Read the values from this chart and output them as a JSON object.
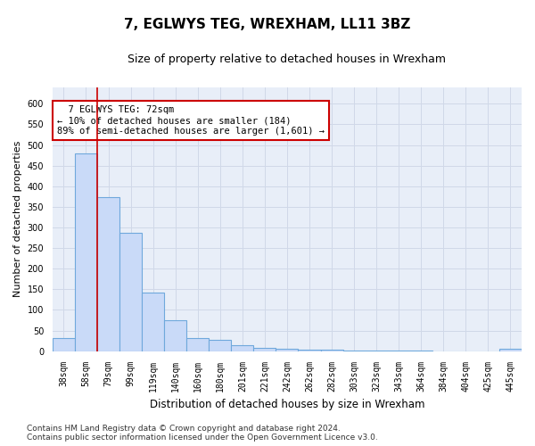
{
  "title": "7, EGLWYS TEG, WREXHAM, LL11 3BZ",
  "subtitle": "Size of property relative to detached houses in Wrexham",
  "xlabel": "Distribution of detached houses by size in Wrexham",
  "ylabel": "Number of detached properties",
  "categories": [
    "38sqm",
    "58sqm",
    "79sqm",
    "99sqm",
    "119sqm",
    "140sqm",
    "160sqm",
    "180sqm",
    "201sqm",
    "221sqm",
    "242sqm",
    "262sqm",
    "282sqm",
    "303sqm",
    "323sqm",
    "343sqm",
    "364sqm",
    "384sqm",
    "404sqm",
    "425sqm",
    "445sqm"
  ],
  "values": [
    32,
    480,
    373,
    288,
    143,
    75,
    31,
    28,
    15,
    8,
    5,
    3,
    3,
    1,
    1,
    1,
    1,
    0,
    0,
    0,
    5
  ],
  "bar_color": "#c9daf8",
  "bar_edge_color": "#6fa8dc",
  "grid_color": "#d0d8e8",
  "background_color": "#e8eef8",
  "annotation_text": "  7 EGLWYS TEG: 72sqm\n← 10% of detached houses are smaller (184)\n89% of semi-detached houses are larger (1,601) →",
  "annotation_box_color": "#ffffff",
  "annotation_box_edge_color": "#cc0000",
  "red_line_x": 1.5,
  "ylim": [
    0,
    640
  ],
  "yticks": [
    0,
    50,
    100,
    150,
    200,
    250,
    300,
    350,
    400,
    450,
    500,
    550,
    600
  ],
  "footer_text": "Contains HM Land Registry data © Crown copyright and database right 2024.\nContains public sector information licensed under the Open Government Licence v3.0.",
  "title_fontsize": 11,
  "subtitle_fontsize": 9,
  "xlabel_fontsize": 8.5,
  "ylabel_fontsize": 8,
  "tick_fontsize": 7,
  "footer_fontsize": 6.5,
  "annotation_fontsize": 7.5
}
